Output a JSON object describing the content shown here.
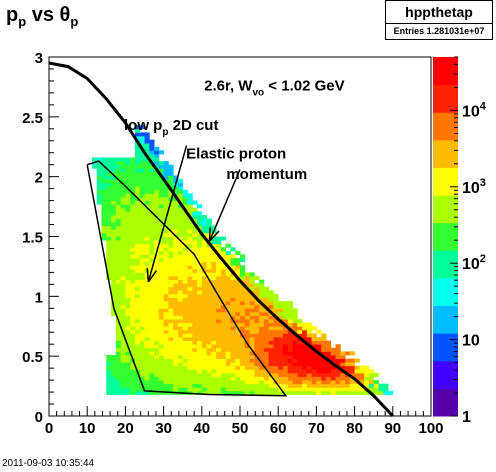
{
  "title": {
    "main": "p",
    "sub1": "p",
    "mid": " vs ",
    "theta": "θ",
    "sub2": "p"
  },
  "stats": {
    "name": "hppthetap",
    "entries": "Entries 1.281031e+07"
  },
  "timestamp": "2011-09-03 10:35:44",
  "colors": {
    "frame": "#000000",
    "curve": "#000000"
  },
  "chart_data": {
    "type": "heatmap",
    "xlim": [
      0,
      100
    ],
    "ylim": [
      0,
      3
    ],
    "x_ticks": [
      "0",
      "10",
      "20",
      "30",
      "40",
      "50",
      "60",
      "70",
      "80",
      "90",
      "100"
    ],
    "y_ticks": [
      "0",
      "0.5",
      "1",
      "1.5",
      "2",
      "2.5",
      "3"
    ],
    "colorbar": {
      "scale": "log",
      "range": [
        1,
        50000
      ],
      "tick_labels": [
        {
          "base": "10",
          "exp": "4",
          "value": 10000
        },
        {
          "base": "10",
          "exp": "3",
          "value": 1000
        },
        {
          "base": "10",
          "exp": "2",
          "value": 100
        },
        {
          "base": "10",
          "exp": "",
          "value": 10
        },
        {
          "base": "1",
          "exp": "",
          "value": 1
        }
      ],
      "palette": [
        "#5500a8",
        "#4400ff",
        "#0055ff",
        "#00bbff",
        "#00ffee",
        "#00ff99",
        "#33ff33",
        "#aaff00",
        "#ffff00",
        "#ffbb00",
        "#ff7700",
        "#ff2200",
        "#ff0000"
      ]
    },
    "elastic_curve": [
      [
        0,
        2.95
      ],
      [
        5,
        2.92
      ],
      [
        10,
        2.82
      ],
      [
        15,
        2.65
      ],
      [
        20,
        2.45
      ],
      [
        25,
        2.2
      ],
      [
        30,
        1.98
      ],
      [
        35,
        1.75
      ],
      [
        40,
        1.52
      ],
      [
        45,
        1.32
      ],
      [
        50,
        1.13
      ],
      [
        55,
        0.96
      ],
      [
        60,
        0.81
      ],
      [
        65,
        0.67
      ],
      [
        70,
        0.54
      ],
      [
        75,
        0.42
      ],
      [
        80,
        0.31
      ],
      [
        85,
        0.17
      ],
      [
        90,
        0.0
      ]
    ],
    "cut_polygon": [
      [
        10,
        2.1
      ],
      [
        13,
        2.13
      ],
      [
        20,
        1.92
      ],
      [
        38,
        1.35
      ],
      [
        45,
        0.97
      ],
      [
        52,
        0.6
      ],
      [
        62,
        0.17
      ],
      [
        42,
        0.18
      ],
      [
        25,
        0.21
      ],
      [
        17,
        0.9
      ],
      [
        10,
        2.1
      ]
    ],
    "annotations": [
      {
        "text": "2.6r, W",
        "sub": "vo",
        "rest": " < 1.02 GeV",
        "x": 59,
        "y": 2.72
      },
      {
        "text": "low p",
        "sub": "p",
        "rest": " 2D cut",
        "x": 32,
        "y": 2.39
      },
      {
        "text": "Elastic proton",
        "sub": "",
        "rest": "",
        "x": 49,
        "y": 2.15
      },
      {
        "text": "momentum",
        "sub": "",
        "rest": "",
        "x": 57,
        "y": 1.98
      }
    ],
    "arrows": [
      {
        "from": [
          36,
          2.26
        ],
        "to": [
          26,
          1.12
        ]
      },
      {
        "from": [
          50,
          2.06
        ],
        "to": [
          42,
          1.46
        ]
      }
    ],
    "density_components": [
      {
        "cx": 72,
        "cy": 0.52,
        "sx": 8,
        "sy": 0.11,
        "amp": 45000
      },
      {
        "cx": 55,
        "cy": 0.85,
        "sx": 15,
        "sy": 0.28,
        "amp": 3500
      },
      {
        "cx": 35,
        "cy": 1.1,
        "sx": 14,
        "sy": 0.5,
        "amp": 900
      },
      {
        "cx": 20,
        "cy": 1.6,
        "sx": 7,
        "sy": 0.45,
        "amp": 150
      },
      {
        "cx": 85,
        "cy": 0.45,
        "sx": 9,
        "sy": 0.22,
        "amp": 400
      }
    ]
  }
}
